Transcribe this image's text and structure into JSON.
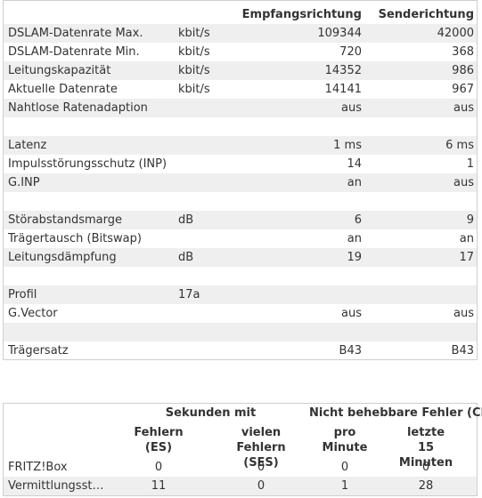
{
  "dsl_table": {
    "header": {
      "downstream": "Empfangsrichtung",
      "upstream": "Senderichtung"
    },
    "rows": [
      {
        "name": "DSLAM-Datenrate Max.",
        "unit": "kbit/s",
        "down": "109344",
        "up": "42000"
      },
      {
        "name": "DSLAM-Datenrate Min.",
        "unit": "kbit/s",
        "down": "720",
        "up": "368"
      },
      {
        "name": "Leitungskapazität",
        "unit": "kbit/s",
        "down": "14352",
        "up": "986"
      },
      {
        "name": "Aktuelle Datenrate",
        "unit": "kbit/s",
        "down": "14141",
        "up": "967"
      },
      {
        "name": "Nahtlose Ratenadaption",
        "unit": "",
        "down": "aus",
        "up": "aus"
      },
      {
        "name": "",
        "unit": "",
        "down": "",
        "up": ""
      },
      {
        "name": "Latenz",
        "unit": "",
        "down": "1 ms",
        "up": "6 ms"
      },
      {
        "name": "Impulsstörungsschutz (INP)",
        "unit": "",
        "down": "14",
        "up": "1"
      },
      {
        "name": "G.INP",
        "unit": "",
        "down": "an",
        "up": "aus"
      },
      {
        "name": "",
        "unit": "",
        "down": "",
        "up": ""
      },
      {
        "name": "Störabstandsmarge",
        "unit": "dB",
        "down": "6",
        "up": "9"
      },
      {
        "name": "Trägertausch (Bitswap)",
        "unit": "",
        "down": "an",
        "up": "an"
      },
      {
        "name": "Leitungsdämpfung",
        "unit": "dB",
        "down": "19",
        "up": "17"
      },
      {
        "name": "",
        "unit": "",
        "down": "",
        "up": ""
      },
      {
        "name": "Profil",
        "unit": "17a",
        "down": "",
        "up": ""
      },
      {
        "name": "G.Vector",
        "unit": "",
        "down": "aus",
        "up": "aus"
      },
      {
        "name": "",
        "unit": "",
        "down": "",
        "up": ""
      },
      {
        "name": "Trägersatz",
        "unit": "",
        "down": "B43",
        "up": "B43"
      }
    ]
  },
  "error_table": {
    "group_seconds": "Sekunden mit",
    "group_crc": "Nicht behebbare Fehler (CRC)",
    "col_es": "Fehlern (ES)",
    "col_ses_line1": "vielen",
    "col_ses_line2": "Fehlern (SES)",
    "col_pro_line1": "pro",
    "col_pro_line2": "Minute",
    "col_last_line1": "letzte",
    "col_last_line2": "15 Minuten",
    "rows": [
      {
        "name": "FRITZ!Box",
        "es": "0",
        "ses": "0",
        "pro": "0",
        "last": "0"
      },
      {
        "name": "Vermittlungsstelle",
        "es": "11",
        "ses": "0",
        "pro": "1",
        "last": "28"
      }
    ]
  }
}
